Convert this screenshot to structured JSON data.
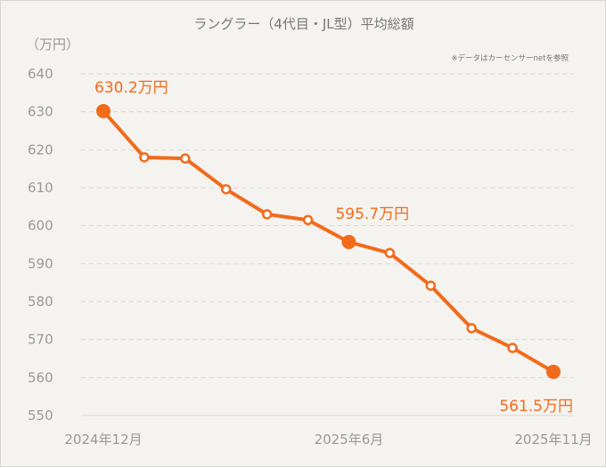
{
  "chart_data": {
    "type": "line",
    "title": "ラングラー（4代目・JL型）平均総額",
    "ylabel": "（万円）",
    "note": "※データはカーセンサーnetを参照",
    "ylim": [
      550,
      640
    ],
    "yticks": [
      550,
      560,
      570,
      580,
      590,
      600,
      610,
      620,
      630,
      640
    ],
    "x": [
      "2024-12",
      "2025-01",
      "2025-02",
      "2025-03",
      "2025-04",
      "2025-05",
      "2025-06",
      "2025-07",
      "2025-08",
      "2025-09",
      "2025-10",
      "2025-11"
    ],
    "xtick_labels": [
      {
        "index": 0,
        "label": "2024年12月"
      },
      {
        "index": 6,
        "label": "2025年6月"
      },
      {
        "index": 11,
        "label": "2025年11月"
      }
    ],
    "values": [
      630.2,
      618.0,
      617.7,
      609.6,
      603.0,
      601.5,
      595.7,
      592.8,
      584.2,
      573.0,
      567.8,
      561.5
    ],
    "annotations": [
      {
        "index": 0,
        "label": "630.2万円"
      },
      {
        "index": 6,
        "label": "595.7万円"
      },
      {
        "index": 11,
        "label": "561.5万円"
      }
    ],
    "grid": true,
    "colors": {
      "line": "#f26a1b",
      "grid": "#d9d6d0",
      "background": "#f5f3ef"
    }
  }
}
